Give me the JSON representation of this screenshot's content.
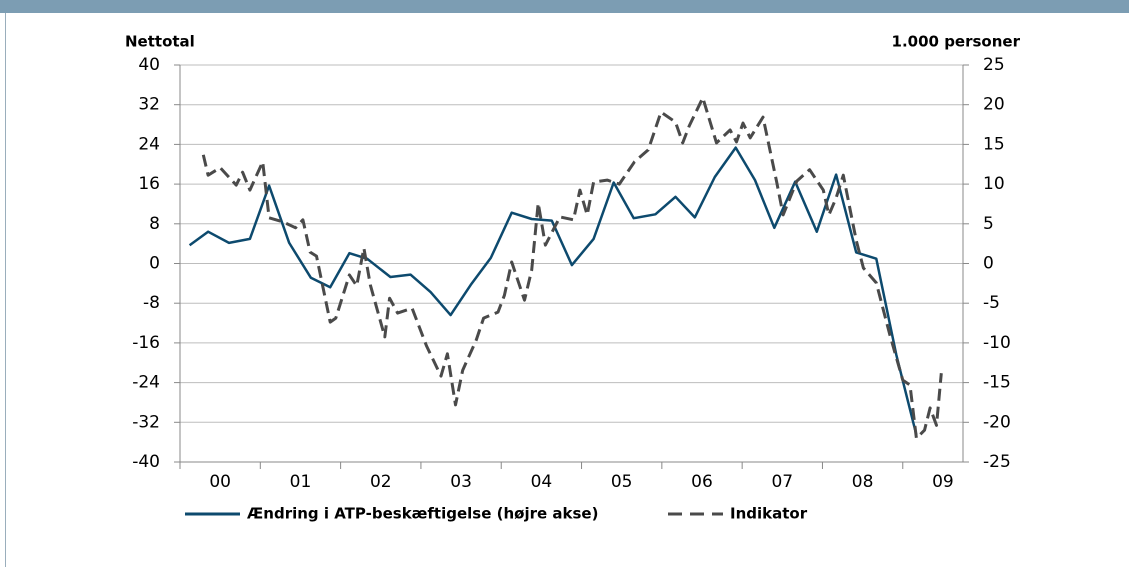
{
  "chart_data": {
    "type": "line",
    "y_label": "Nettotal",
    "y2_label": "1.000 personer",
    "categories": [
      "00",
      "01",
      "02",
      "03",
      "04",
      "05",
      "06",
      "07",
      "08",
      "09"
    ],
    "xlim": [
      0,
      9.75
    ],
    "ylim": [
      -40,
      40
    ],
    "yticks": [
      -40,
      -32,
      -24,
      -16,
      -8,
      0,
      8,
      16,
      24,
      32,
      40
    ],
    "y2lim": [
      -25,
      25
    ],
    "y2ticks": [
      -25,
      -20,
      -15,
      -10,
      -5,
      0,
      5,
      10,
      15,
      20,
      25
    ],
    "grid": true,
    "series": [
      {
        "name": "Ændring i ATP-beskæftigelse (højre akse)",
        "color": "#0d4a6e",
        "axis": "y2",
        "dash": false,
        "x": [
          0.12,
          0.35,
          0.61,
          0.87,
          1.11,
          1.36,
          1.63,
          1.87,
          2.11,
          2.33,
          2.62,
          2.87,
          3.12,
          3.37,
          3.62,
          3.87,
          4.13,
          4.38,
          4.63,
          4.88,
          5.15,
          5.4,
          5.65,
          5.92,
          6.17,
          6.41,
          6.66,
          6.92,
          7.16,
          7.4,
          7.66,
          7.93,
          8.17,
          8.42,
          8.67,
          8.92,
          9.17
        ],
        "values": [
          2.3,
          4.0,
          2.6,
          3.1,
          9.8,
          2.6,
          -1.8,
          -3.0,
          1.3,
          0.6,
          -1.7,
          -1.4,
          -3.6,
          -6.5,
          -2.7,
          0.7,
          6.4,
          5.6,
          5.4,
          -0.2,
          3.1,
          10.2,
          5.7,
          6.2,
          8.4,
          5.8,
          10.9,
          14.6,
          10.5,
          4.5,
          10.3,
          4.0,
          11.2,
          1.4,
          0.6,
          -11.5,
          -21.6
        ]
      },
      {
        "name": "Indikator",
        "color": "#4a4a4a",
        "axis": "y",
        "dash": true,
        "x": [
          0.29,
          0.35,
          0.5,
          0.7,
          0.78,
          0.87,
          1.03,
          1.11,
          1.28,
          1.44,
          1.53,
          1.62,
          1.7,
          1.87,
          1.94,
          2.11,
          2.2,
          2.29,
          2.37,
          2.55,
          2.61,
          2.71,
          2.89,
          3.07,
          3.25,
          3.33,
          3.43,
          3.52,
          3.69,
          3.78,
          3.96,
          4.04,
          4.13,
          4.29,
          4.38,
          4.46,
          4.55,
          4.73,
          4.9,
          4.98,
          5.07,
          5.15,
          5.32,
          5.47,
          5.66,
          5.83,
          5.99,
          6.17,
          6.26,
          6.34,
          6.51,
          6.68,
          6.85,
          6.93,
          7.01,
          7.1,
          7.26,
          7.43,
          7.51,
          7.68,
          7.84,
          8.01,
          8.08,
          8.17,
          8.26,
          8.42,
          8.51,
          8.67,
          8.84,
          9.0,
          9.09,
          9.17,
          9.27,
          9.34,
          9.42,
          9.48
        ],
        "values": [
          21.9,
          17.8,
          19.3,
          15.8,
          18.4,
          14.8,
          20.5,
          9.2,
          8.4,
          7.2,
          8.8,
          2.3,
          1.5,
          -11.8,
          -11.0,
          -2.3,
          -4.5,
          3.1,
          -4.3,
          -14.8,
          -7.0,
          -10.0,
          -9.0,
          -16.6,
          -22.7,
          -18.2,
          -28.5,
          -21.5,
          -15.4,
          -11.0,
          -9.8,
          -6.4,
          0.3,
          -7.4,
          -1.3,
          12.2,
          3.7,
          9.4,
          8.8,
          14.8,
          9.8,
          16.4,
          16.8,
          16.0,
          20.5,
          22.9,
          30.5,
          28.5,
          24.3,
          27.7,
          33.4,
          24.3,
          26.9,
          24.5,
          28.3,
          25.3,
          29.5,
          16.4,
          9.8,
          16.6,
          18.9,
          14.8,
          9.8,
          13.2,
          17.8,
          4.7,
          -0.9,
          -3.9,
          -14.4,
          -23.5,
          -24.5,
          -35.2,
          -33.6,
          -29.1,
          -32.6,
          -22.1
        ]
      }
    ]
  }
}
